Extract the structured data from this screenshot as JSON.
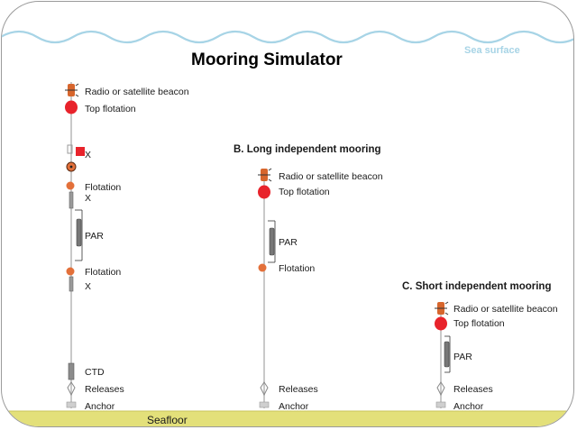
{
  "title": "Mooring Simulator",
  "sea_surface_label": "Sea surface",
  "seafloor_label": "Seafloor",
  "mooring_a": {
    "labels": {
      "beacon": "Radio or satellite beacon",
      "top_flotation": "Top flotation",
      "x1": "X",
      "flotation1": "Flotation",
      "x2": "X",
      "par": "PAR",
      "flotation2": "Flotation",
      "x3": "X",
      "ctd": "CTD",
      "releases": "Releases",
      "anchor": "Anchor"
    }
  },
  "mooring_b": {
    "header": "B. Long independent mooring",
    "labels": {
      "beacon": "Radio or satellite beacon",
      "top_flotation": "Top flotation",
      "par": "PAR",
      "flotation": "Flotation",
      "releases": "Releases",
      "anchor": "Anchor"
    }
  },
  "mooring_c": {
    "header": "C. Short independent mooring",
    "labels": {
      "beacon": "Radio or satellite beacon",
      "top_flotation": "Top flotation",
      "par": "PAR",
      "releases": "Releases",
      "anchor": "Anchor"
    }
  },
  "colors": {
    "sea_wave": "#a7d4e6",
    "seafloor": "#e3e07a",
    "top_flotation": "#e8232b",
    "flotation": "#e3703a",
    "beacon": "#d7662d",
    "x_marker": "#e8232b",
    "cable": "#b7b7b7"
  }
}
